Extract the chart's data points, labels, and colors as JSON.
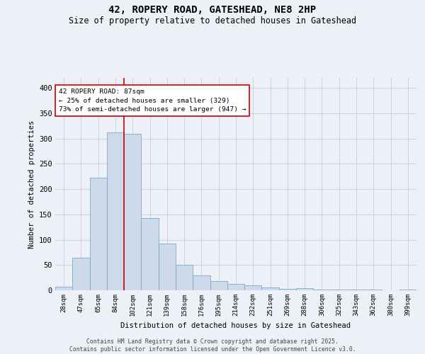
{
  "title_line1": "42, ROPERY ROAD, GATESHEAD, NE8 2HP",
  "title_line2": "Size of property relative to detached houses in Gateshead",
  "xlabel": "Distribution of detached houses by size in Gateshead",
  "ylabel": "Number of detached properties",
  "categories": [
    "28sqm",
    "47sqm",
    "65sqm",
    "84sqm",
    "102sqm",
    "121sqm",
    "139sqm",
    "158sqm",
    "176sqm",
    "195sqm",
    "214sqm",
    "232sqm",
    "251sqm",
    "269sqm",
    "288sqm",
    "306sqm",
    "325sqm",
    "343sqm",
    "362sqm",
    "380sqm",
    "399sqm"
  ],
  "values": [
    7,
    65,
    222,
    312,
    310,
    143,
    93,
    50,
    30,
    18,
    13,
    10,
    5,
    3,
    4,
    2,
    1,
    1,
    1,
    0,
    1
  ],
  "bar_color": "#ccdaeb",
  "bar_edge_color": "#7aaac8",
  "grid_color": "#c8d0dc",
  "background_color": "#edf1f7",
  "annotation_line1": "42 ROPERY ROAD: 87sqm",
  "annotation_line2": "← 25% of detached houses are smaller (329)",
  "annotation_line3": "73% of semi-detached houses are larger (947) →",
  "vline_color": "#cc0000",
  "vline_bar_index": 3,
  "annotation_box_facecolor": "#ffffff",
  "annotation_box_edgecolor": "#cc0000",
  "footer_line1": "Contains HM Land Registry data © Crown copyright and database right 2025.",
  "footer_line2": "Contains public sector information licensed under the Open Government Licence v3.0.",
  "ylim_max": 420,
  "yticks": [
    0,
    50,
    100,
    150,
    200,
    250,
    300,
    350,
    400
  ]
}
